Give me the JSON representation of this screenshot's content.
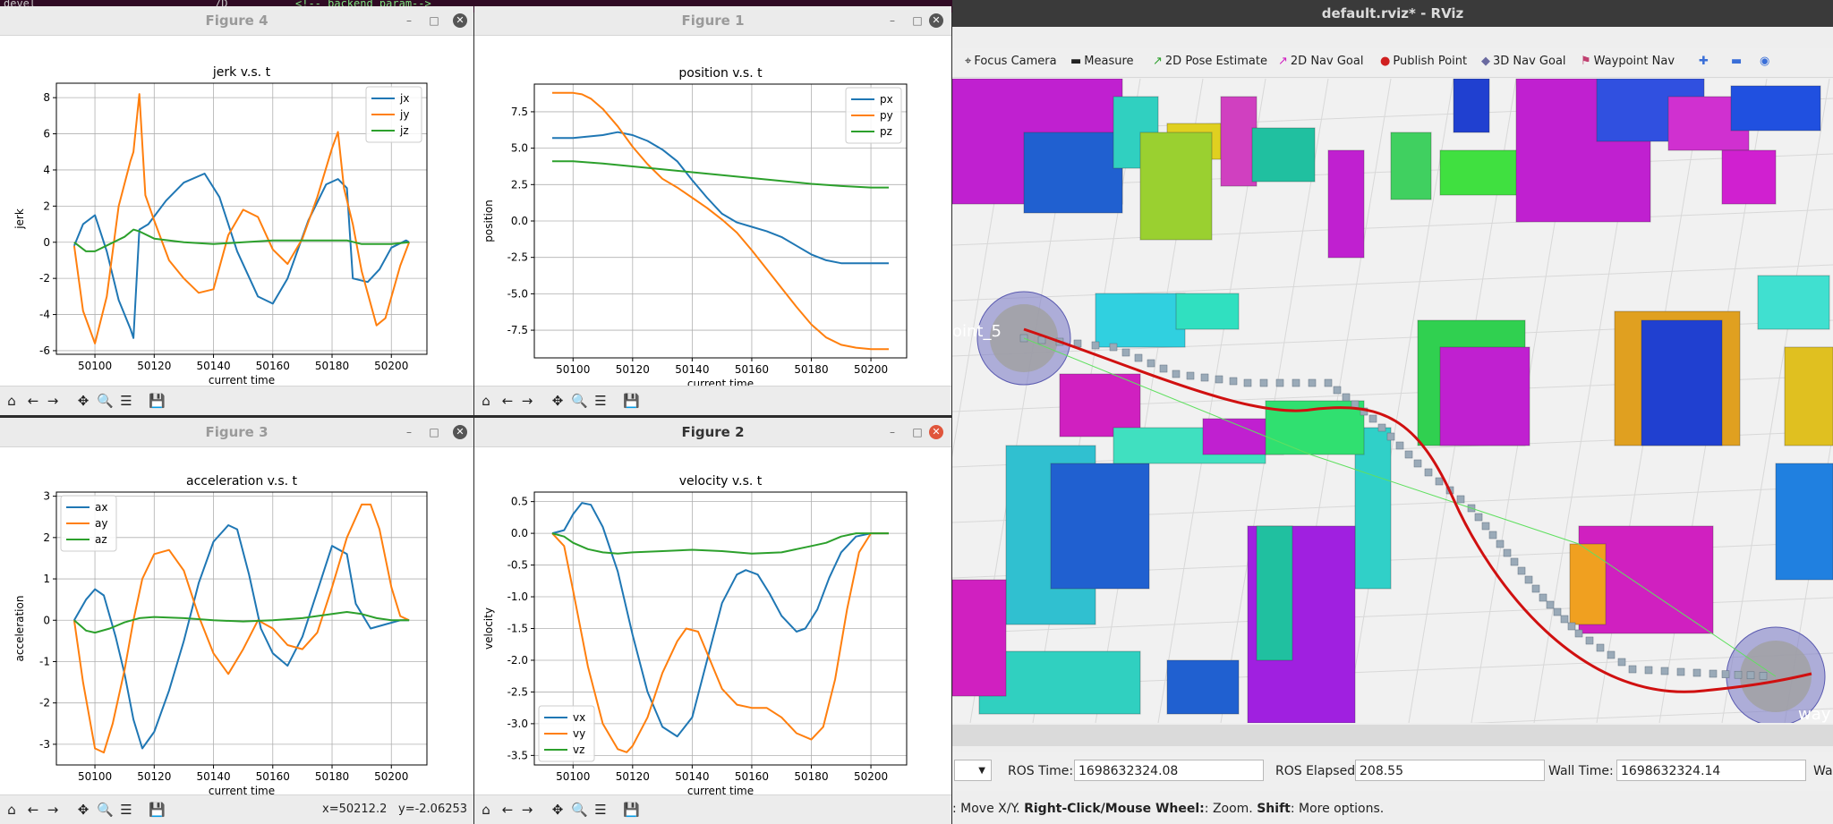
{
  "terminal": {
    "prompt": "devel",
    "line_a": "/D",
    "line_b": "<!-- backend param-->"
  },
  "figures": [
    {
      "id": "fig4",
      "window_title": "Figure 4",
      "active": false,
      "coord_x": "",
      "coord_y": "",
      "chart_data": {
        "type": "line",
        "title": "jerk v.s. t",
        "xlabel": "current time",
        "ylabel": "jerk",
        "xlim": [
          50087,
          50212
        ],
        "ylim": [
          -6.2,
          8.8
        ],
        "xticks": [
          "50100",
          "50120",
          "50140",
          "50160",
          "50180",
          "50200"
        ],
        "xtick_values": [
          50100,
          50120,
          50140,
          50160,
          50180,
          50200
        ],
        "yticks": [
          "8",
          "6",
          "4",
          "2",
          "0",
          "-2",
          "-4",
          "-6"
        ],
        "ytick_values": [
          8,
          6,
          4,
          2,
          0,
          -2,
          -4,
          -6
        ],
        "legend": "top-right",
        "grid": true,
        "series": [
          {
            "name": "jx",
            "color": "#1f77b4",
            "x": [
              50093,
              50096,
              50100,
              50104,
              50108,
              50112,
              50113,
              50115,
              50118,
              50124,
              50130,
              50137,
              50142,
              50148,
              50155,
              50160,
              50165,
              50172,
              50178,
              50182,
              50185,
              50187,
              50192,
              50196,
              50200,
              50205,
              50206
            ],
            "y": [
              -0.2,
              1.0,
              1.5,
              -0.5,
              -3.2,
              -4.8,
              -5.3,
              0.7,
              1.0,
              2.3,
              3.3,
              3.8,
              2.5,
              -0.5,
              -3.0,
              -3.4,
              -2.0,
              1.2,
              3.2,
              3.5,
              3.0,
              -2.0,
              -2.2,
              -1.5,
              -0.3,
              0.1,
              0.0
            ]
          },
          {
            "name": "jy",
            "color": "#ff7f0e",
            "x": [
              50093,
              50096,
              50100,
              50104,
              50108,
              50112,
              50113,
              50115,
              50117,
              50120,
              50125,
              50130,
              50135,
              50140,
              50145,
              50150,
              50155,
              50160,
              50165,
              50170,
              50175,
              50180,
              50182,
              50184,
              50187,
              50190,
              50195,
              50198,
              50203,
              50206
            ],
            "y": [
              -0.2,
              -3.8,
              -5.6,
              -3.0,
              2.0,
              4.5,
              5.0,
              8.2,
              2.6,
              1.2,
              -1.0,
              -2.0,
              -2.8,
              -2.6,
              0.4,
              1.8,
              1.4,
              -0.4,
              -1.2,
              0.2,
              2.5,
              5.2,
              6.1,
              3.0,
              1.0,
              -1.6,
              -4.6,
              -4.2,
              -1.3,
              0.0
            ]
          },
          {
            "name": "jz",
            "color": "#2ca02c",
            "x": [
              50093,
              50097,
              50100,
              50105,
              50110,
              50113,
              50115,
              50120,
              50130,
              50140,
              50150,
              50160,
              50170,
              50180,
              50185,
              50190,
              50195,
              50200,
              50206
            ],
            "y": [
              0.0,
              -0.5,
              -0.5,
              -0.1,
              0.3,
              0.7,
              0.6,
              0.2,
              0.0,
              -0.1,
              0.0,
              0.1,
              0.1,
              0.1,
              0.1,
              -0.1,
              -0.1,
              -0.1,
              0.0
            ]
          }
        ]
      }
    },
    {
      "id": "fig1",
      "window_title": "Figure 1",
      "active": false,
      "coord_x": "",
      "coord_y": "",
      "chart_data": {
        "type": "line",
        "title": "position v.s. t",
        "xlabel": "current time",
        "ylabel": "position",
        "xlim": [
          50087,
          50212
        ],
        "ylim": [
          -9.4,
          9.4
        ],
        "xticks": [
          "50100",
          "50120",
          "50140",
          "50160",
          "50180",
          "50200"
        ],
        "xtick_values": [
          50100,
          50120,
          50140,
          50160,
          50180,
          50200
        ],
        "yticks": [
          "7.5",
          "5.0",
          "2.5",
          "0.0",
          "-2.5",
          "-5.0",
          "-7.5"
        ],
        "ytick_values": [
          7.5,
          5,
          2.5,
          0,
          -2.5,
          -5,
          -7.5
        ],
        "legend": "top-right",
        "grid": true,
        "series": [
          {
            "name": "px",
            "color": "#1f77b4",
            "x": [
              50093,
              50100,
              50105,
              50110,
              50115,
              50120,
              50125,
              50130,
              50135,
              50140,
              50145,
              50150,
              50155,
              50160,
              50165,
              50170,
              50175,
              50180,
              50185,
              50190,
              50195,
              50200,
              50206
            ],
            "y": [
              5.7,
              5.7,
              5.8,
              5.9,
              6.1,
              5.9,
              5.5,
              4.9,
              4.1,
              2.8,
              1.6,
              0.5,
              -0.1,
              -0.4,
              -0.7,
              -1.1,
              -1.7,
              -2.3,
              -2.7,
              -2.9,
              -2.9,
              -2.9,
              -2.9
            ]
          },
          {
            "name": "py",
            "color": "#ff7f0e",
            "x": [
              50093,
              50100,
              50103,
              50106,
              50110,
              50115,
              50120,
              50125,
              50130,
              50135,
              50140,
              50145,
              50150,
              50155,
              50160,
              50165,
              50170,
              50175,
              50180,
              50185,
              50190,
              50195,
              50200,
              50206
            ],
            "y": [
              8.8,
              8.8,
              8.7,
              8.4,
              7.7,
              6.5,
              5.1,
              3.9,
              2.9,
              2.3,
              1.6,
              0.9,
              0.1,
              -0.8,
              -2.0,
              -3.3,
              -4.6,
              -5.9,
              -7.1,
              -8.0,
              -8.5,
              -8.7,
              -8.8,
              -8.8
            ]
          },
          {
            "name": "pz",
            "color": "#2ca02c",
            "x": [
              50093,
              50100,
              50110,
              50120,
              50130,
              50140,
              50150,
              50160,
              50170,
              50180,
              50190,
              50200,
              50206
            ],
            "y": [
              4.1,
              4.1,
              3.95,
              3.75,
              3.55,
              3.35,
              3.15,
              2.95,
              2.75,
              2.55,
              2.4,
              2.3,
              2.3
            ]
          }
        ]
      }
    },
    {
      "id": "fig3",
      "window_title": "Figure 3",
      "active": false,
      "coord_x": "x=50212.2",
      "coord_y": "y=-2.06253",
      "chart_data": {
        "type": "line",
        "title": "acceleration v.s. t",
        "xlabel": "current time",
        "ylabel": "acceleration",
        "xlim": [
          50087,
          50212
        ],
        "ylim": [
          -3.5,
          3.1
        ],
        "xticks": [
          "50100",
          "50120",
          "50140",
          "50160",
          "50180",
          "50200"
        ],
        "xtick_values": [
          50100,
          50120,
          50140,
          50160,
          50180,
          50200
        ],
        "yticks": [
          "3",
          "2",
          "1",
          "0",
          "-1",
          "-2",
          "-3"
        ],
        "ytick_values": [
          3,
          2,
          1,
          0,
          -1,
          -2,
          -3
        ],
        "legend": "top-left",
        "grid": true,
        "series": [
          {
            "name": "ax",
            "color": "#1f77b4",
            "x": [
              50093,
              50097,
              50100,
              50103,
              50107,
              50110,
              50113,
              50116,
              50120,
              50125,
              50130,
              50135,
              50140,
              50145,
              50148,
              50152,
              50156,
              50160,
              50165,
              50170,
              50175,
              50180,
              50185,
              50188,
              50193,
              50198,
              50203,
              50206
            ],
            "y": [
              0.0,
              0.5,
              0.75,
              0.6,
              -0.4,
              -1.3,
              -2.4,
              -3.1,
              -2.7,
              -1.7,
              -0.5,
              0.9,
              1.9,
              2.3,
              2.2,
              1.1,
              -0.2,
              -0.8,
              -1.1,
              -0.4,
              0.7,
              1.8,
              1.6,
              0.4,
              -0.2,
              -0.1,
              0.0,
              0.0
            ]
          },
          {
            "name": "ay",
            "color": "#ff7f0e",
            "x": [
              50093,
              50096,
              50100,
              50103,
              50106,
              50110,
              50113,
              50116,
              50120,
              50125,
              50130,
              50135,
              50140,
              50145,
              50150,
              50155,
              50160,
              50165,
              50170,
              50175,
              50180,
              50185,
              50190,
              50193,
              50196,
              50200,
              50203,
              50206
            ],
            "y": [
              0.0,
              -1.5,
              -3.1,
              -3.2,
              -2.5,
              -1.2,
              0.0,
              1.0,
              1.6,
              1.7,
              1.2,
              0.1,
              -0.8,
              -1.3,
              -0.7,
              0.0,
              -0.2,
              -0.6,
              -0.7,
              -0.3,
              0.8,
              2.0,
              2.8,
              2.8,
              2.2,
              0.8,
              0.1,
              0.0
            ]
          },
          {
            "name": "az",
            "color": "#2ca02c",
            "x": [
              50093,
              50097,
              50100,
              50105,
              50110,
              50115,
              50120,
              50130,
              50140,
              50150,
              50160,
              50170,
              50180,
              50185,
              50190,
              50195,
              50200,
              50206
            ],
            "y": [
              0.0,
              -0.25,
              -0.3,
              -0.2,
              -0.05,
              0.05,
              0.08,
              0.05,
              0.0,
              -0.03,
              0.0,
              0.05,
              0.15,
              0.2,
              0.15,
              0.05,
              0.0,
              0.0
            ]
          }
        ]
      }
    },
    {
      "id": "fig2",
      "window_title": "Figure 2",
      "active": true,
      "coord_x": "",
      "coord_y": "",
      "chart_data": {
        "type": "line",
        "title": "velocity v.s. t",
        "xlabel": "current time",
        "ylabel": "velocity",
        "xlim": [
          50087,
          50212
        ],
        "ylim": [
          -3.65,
          0.65
        ],
        "xticks": [
          "50100",
          "50120",
          "50140",
          "50160",
          "50180",
          "50200"
        ],
        "xtick_values": [
          50100,
          50120,
          50140,
          50160,
          50180,
          50200
        ],
        "yticks": [
          "0.5",
          "0.0",
          "-0.5",
          "-1.0",
          "-1.5",
          "-2.0",
          "-2.5",
          "-3.0",
          "-3.5"
        ],
        "ytick_values": [
          0.5,
          0,
          -0.5,
          -1,
          -1.5,
          -2,
          -2.5,
          -3,
          -3.5
        ],
        "legend": "bottom-left",
        "grid": true,
        "series": [
          {
            "name": "vx",
            "color": "#1f77b4",
            "x": [
              50093,
              50097,
              50100,
              50103,
              50106,
              50110,
              50115,
              50120,
              50125,
              50130,
              50135,
              50140,
              50145,
              50150,
              50155,
              50158,
              50162,
              50166,
              50170,
              50175,
              50178,
              50182,
              50186,
              50190,
              50195,
              50200,
              50206
            ],
            "y": [
              0.0,
              0.05,
              0.3,
              0.48,
              0.45,
              0.1,
              -0.6,
              -1.6,
              -2.5,
              -3.05,
              -3.2,
              -2.9,
              -2.0,
              -1.1,
              -0.65,
              -0.58,
              -0.65,
              -0.95,
              -1.3,
              -1.55,
              -1.5,
              -1.2,
              -0.7,
              -0.3,
              -0.05,
              0.0,
              0.0
            ]
          },
          {
            "name": "vy",
            "color": "#ff7f0e",
            "x": [
              50093,
              50097,
              50100,
              50105,
              50110,
              50115,
              50118,
              50120,
              50125,
              50130,
              50135,
              50138,
              50142,
              50146,
              50150,
              50155,
              50160,
              50165,
              50170,
              50175,
              50180,
              50184,
              50188,
              50192,
              50196,
              50200,
              50206
            ],
            "y": [
              0.0,
              -0.2,
              -0.9,
              -2.1,
              -3.0,
              -3.4,
              -3.45,
              -3.35,
              -2.9,
              -2.2,
              -1.7,
              -1.5,
              -1.55,
              -2.0,
              -2.45,
              -2.7,
              -2.75,
              -2.75,
              -2.9,
              -3.15,
              -3.25,
              -3.05,
              -2.3,
              -1.2,
              -0.3,
              0.0,
              0.0
            ]
          },
          {
            "name": "vz",
            "color": "#2ca02c",
            "x": [
              50093,
              50097,
              50100,
              50105,
              50110,
              50115,
              50120,
              50130,
              50140,
              50150,
              50160,
              50170,
              50180,
              50185,
              50190,
              50195,
              50200,
              50206
            ],
            "y": [
              0.0,
              -0.05,
              -0.15,
              -0.25,
              -0.3,
              -0.32,
              -0.3,
              -0.28,
              -0.26,
              -0.28,
              -0.32,
              -0.3,
              -0.2,
              -0.15,
              -0.05,
              0.0,
              0.0,
              0.0
            ]
          }
        ]
      }
    }
  ],
  "rviz": {
    "window_title": "default.rviz* - RViz",
    "tools": [
      {
        "label": "Focus Camera",
        "icon": "crosshair-icon",
        "color": "#666666"
      },
      {
        "label": "Measure",
        "icon": "ruler-icon",
        "color": "#666666"
      },
      {
        "label": "2D Pose Estimate",
        "icon": "green-arrow-icon",
        "color": "#2ca02c"
      },
      {
        "label": "2D Nav Goal",
        "icon": "magenta-arrow-icon",
        "color": "#d020c0"
      },
      {
        "label": "Publish Point",
        "icon": "red-pin-icon",
        "color": "#d02020"
      },
      {
        "label": "3D Nav Goal",
        "icon": "diamond-icon",
        "color": "#6a6aa0"
      },
      {
        "label": "Waypoint Nav",
        "icon": "flag-icon",
        "color": "#c04070"
      }
    ],
    "scene_labels": {
      "waypoint_left": "oint_5",
      "waypoint_right": "way"
    },
    "time": {
      "ros_time_label": "ROS Time:",
      "ros_time": "1698632324.08",
      "ros_elapsed_label": "ROS Elapsed:",
      "ros_elapsed": "208.55",
      "wall_time_label": "Wall Time:",
      "wall_time": "1698632324.14",
      "wall_trunc": "Wal"
    },
    "status": {
      "p1": ": Move X/Y. ",
      "b1": "Right-Click/Mouse Wheel:",
      "p2": ": Zoom. ",
      "b2": "Shift",
      "p3": ": More options."
    }
  }
}
